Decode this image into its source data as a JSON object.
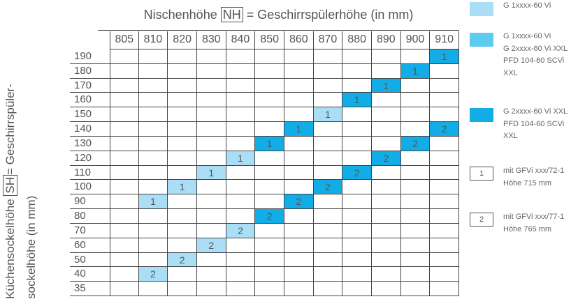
{
  "title": {
    "before": "Nischenhöhe",
    "boxed": "NH",
    "after": "= Geschirrspülerhöhe (in mm)"
  },
  "side_label": {
    "line1_before": "Küchensockelhöhe",
    "line1_boxed": "SH",
    "line1_after": "= Geschirrspüler-",
    "line2": "sockelhöhe (in mm)"
  },
  "columns": [
    "805",
    "810",
    "820",
    "830",
    "840",
    "850",
    "860",
    "870",
    "880",
    "890",
    "900",
    "910"
  ],
  "rows": [
    {
      "label": "190",
      "cells": [
        null,
        null,
        null,
        null,
        null,
        null,
        null,
        null,
        null,
        null,
        null,
        {
          "text": "1",
          "color": "#12ade6"
        }
      ]
    },
    {
      "label": "180",
      "cells": [
        null,
        null,
        null,
        null,
        null,
        null,
        null,
        null,
        null,
        null,
        {
          "text": "1",
          "color": "#12ade6"
        },
        null
      ]
    },
    {
      "label": "170",
      "cells": [
        null,
        null,
        null,
        null,
        null,
        null,
        null,
        null,
        null,
        {
          "text": "1",
          "color": "#12ade6"
        },
        null,
        null
      ]
    },
    {
      "label": "160",
      "cells": [
        null,
        null,
        null,
        null,
        null,
        null,
        null,
        null,
        {
          "text": "1",
          "color": "#12ade6"
        },
        null,
        null,
        null
      ]
    },
    {
      "label": "150",
      "cells": [
        null,
        null,
        null,
        null,
        null,
        null,
        null,
        {
          "text": "1",
          "color": "#a9def6"
        },
        null,
        null,
        null,
        null
      ]
    },
    {
      "label": "140",
      "cells": [
        null,
        null,
        null,
        null,
        null,
        null,
        {
          "text": "1",
          "color": "#12ade6"
        },
        null,
        null,
        null,
        null,
        {
          "text": "2",
          "color": "#12ade6"
        }
      ]
    },
    {
      "label": "130",
      "cells": [
        null,
        null,
        null,
        null,
        null,
        {
          "text": "1",
          "color": "#12ade6"
        },
        null,
        null,
        null,
        null,
        {
          "text": "2",
          "color": "#12ade6"
        },
        null
      ]
    },
    {
      "label": "120",
      "cells": [
        null,
        null,
        null,
        null,
        {
          "text": "1",
          "color": "#a9def6"
        },
        null,
        null,
        null,
        null,
        {
          "text": "2",
          "color": "#12ade6"
        },
        null,
        null
      ]
    },
    {
      "label": "110",
      "cells": [
        null,
        null,
        null,
        {
          "text": "1",
          "color": "#a9def6"
        },
        null,
        null,
        null,
        null,
        {
          "text": "2",
          "color": "#12ade6"
        },
        null,
        null,
        null
      ]
    },
    {
      "label": "100",
      "cells": [
        null,
        null,
        {
          "text": "1",
          "color": "#a9def6"
        },
        null,
        null,
        null,
        null,
        {
          "text": "2",
          "color": "#12ade6"
        },
        null,
        null,
        null,
        null
      ]
    },
    {
      "label": "90",
      "cells": [
        null,
        {
          "text": "1",
          "color": "#a9def6"
        },
        null,
        null,
        null,
        null,
        {
          "text": "2",
          "color": "#12ade6"
        },
        null,
        null,
        null,
        null,
        null
      ]
    },
    {
      "label": "80",
      "cells": [
        null,
        null,
        null,
        null,
        null,
        {
          "text": "2",
          "color": "#12ade6"
        },
        null,
        null,
        null,
        null,
        null,
        null
      ]
    },
    {
      "label": "70",
      "cells": [
        null,
        null,
        null,
        null,
        {
          "text": "2",
          "color": "#a9def6"
        },
        null,
        null,
        null,
        null,
        null,
        null,
        null
      ]
    },
    {
      "label": "60",
      "cells": [
        null,
        null,
        null,
        {
          "text": "2",
          "color": "#a9def6"
        },
        null,
        null,
        null,
        null,
        null,
        null,
        null,
        null
      ]
    },
    {
      "label": "50",
      "cells": [
        null,
        null,
        {
          "text": "2",
          "color": "#a9def6"
        },
        null,
        null,
        null,
        null,
        null,
        null,
        null,
        null,
        null
      ]
    },
    {
      "label": "40",
      "cells": [
        null,
        {
          "text": "2",
          "color": "#a9def6"
        },
        null,
        null,
        null,
        null,
        null,
        null,
        null,
        null,
        null,
        null
      ]
    },
    {
      "label": "35",
      "cells": [
        null,
        null,
        null,
        null,
        null,
        null,
        null,
        null,
        null,
        null,
        null,
        null
      ]
    }
  ],
  "legend": [
    {
      "color": "#a9def6",
      "lines": [
        "G 1xxxx-60 Vi"
      ]
    },
    {
      "color": "#5fcbf1",
      "lines": [
        "G 1xxxx-60 Vi",
        "G 2xxxx-60 Vi XXL",
        "PFD 104-60 SCVi",
        "XXL"
      ]
    },
    {
      "color": "#12ade6",
      "lines": [
        "G 2xxxx-60 Vi XXL",
        "PFD 104-60 SCVi",
        "XXL"
      ]
    },
    {
      "box": "1",
      "lines": [
        "mit GFVi xxx/72-1",
        "Höhe 715 mm"
      ]
    },
    {
      "box": "2",
      "lines": [
        "mit GFVi xxx/77-1",
        "Höhe 765 mm"
      ]
    }
  ]
}
